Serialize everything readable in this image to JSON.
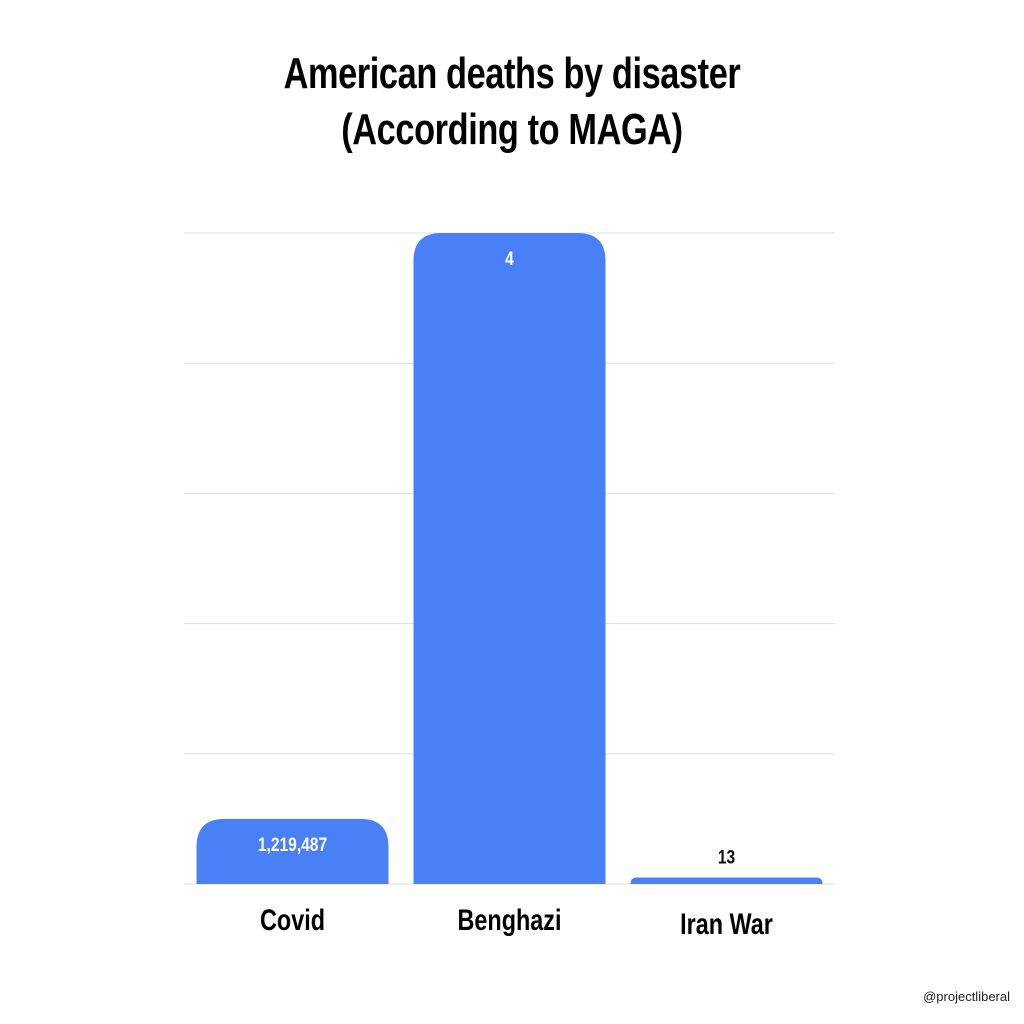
{
  "title_line1": "American deaths by disaster",
  "title_line2": "(According to MAGA)",
  "watermark": "@projectliberal",
  "colors": {
    "bar": "#4a80f5",
    "grid": "#dddddd",
    "label_inside": "#ffffff",
    "label_outside": "#111111",
    "text": "#000000"
  },
  "chart_data": {
    "type": "bar",
    "title": "American deaths by disaster (According to MAGA)",
    "categories": [
      "Covid",
      "Benghazi",
      "Iran War"
    ],
    "values": [
      1219487,
      4,
      13
    ],
    "data_labels": [
      "1,219,487",
      "4",
      "13"
    ],
    "display_levels": [
      0.1,
      1.0,
      0.01
    ],
    "xlabel": "",
    "ylabel": "",
    "grid": true,
    "gridline_count": 6,
    "legend": "none"
  }
}
